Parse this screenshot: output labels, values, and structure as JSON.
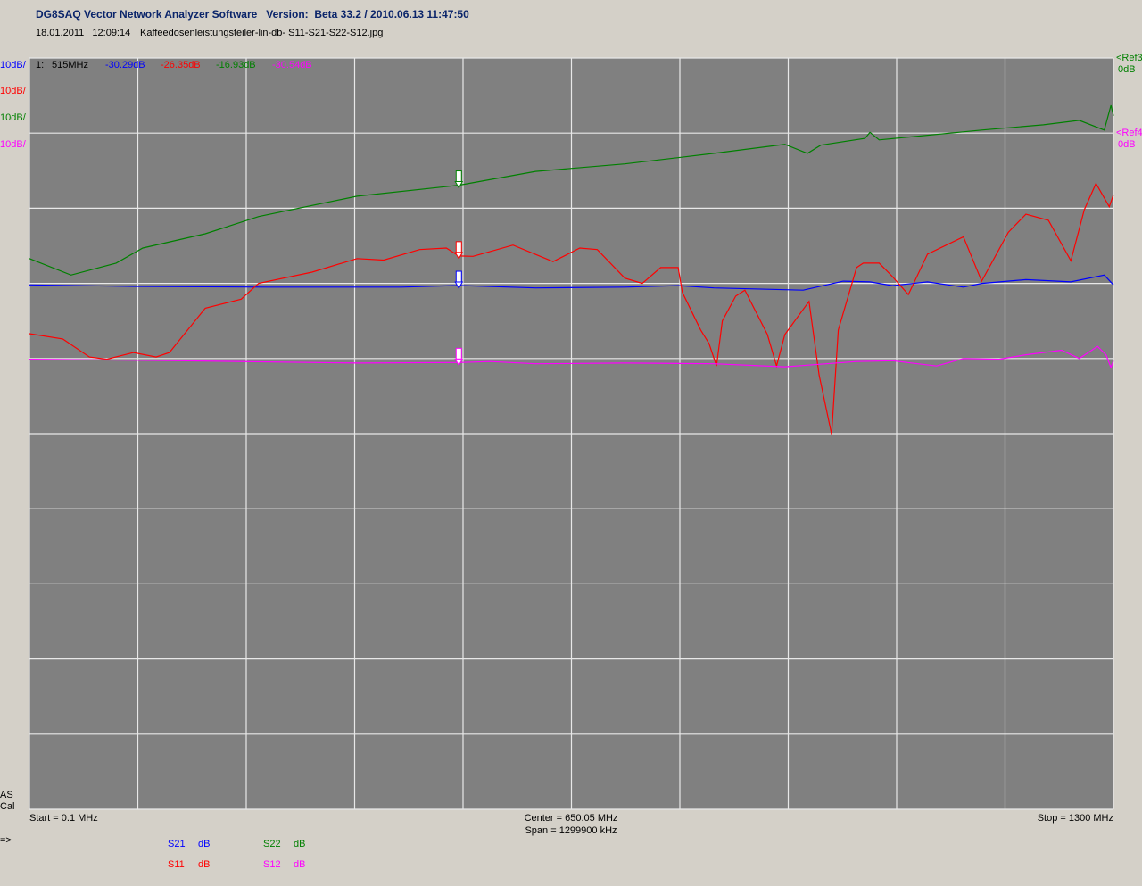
{
  "header": {
    "title": "DG8SAQ Vector Network Analyzer Software   Version:  Beta 33.2 / 2010.06.13 11:47:50",
    "timestamp": "18.01.2011   12:09:14",
    "filename": "Kaffeedosenleistungsteiler-lin-db- S11-S21-S22-S12.jpg"
  },
  "chart_data": {
    "type": "line",
    "xlim": [
      0.1,
      1300
    ],
    "xticks": [
      0.1,
      130.09,
      260.08,
      390.07,
      520.06,
      650.05,
      780.04,
      910.03,
      1040.02,
      1170.01,
      1300
    ],
    "ylim": [
      -100,
      0
    ],
    "yticks": [
      0,
      -10,
      -20,
      -30,
      -40,
      -50,
      -60,
      -70,
      -80,
      -90,
      -100
    ],
    "y2lim": [
      -90,
      10
    ],
    "grid": true,
    "marker": {
      "label": "1:",
      "x": {
        "value": 515,
        "label": "515MHz"
      }
    },
    "series": [
      {
        "name": "S21",
        "unit": "dB",
        "scale": "10dB/",
        "marker_readout": "-30.29dB",
        "color": "#0000ff",
        "x": [
          0.1,
          125,
          286,
          446,
          515,
          607,
          714,
          778,
          821,
          928,
          976,
          1008,
          1035,
          1077,
          1120,
          1142,
          1195,
          1249,
          1289,
          1300
        ],
        "values": [
          -30.2,
          -30.4,
          -30.5,
          -30.5,
          -30.29,
          -30.6,
          -30.5,
          -30.3,
          -30.6,
          -30.9,
          -29.7,
          -29.8,
          -30.3,
          -29.8,
          -30.5,
          -30.0,
          -29.5,
          -29.8,
          -28.9,
          -30.2
        ]
      },
      {
        "name": "S11",
        "unit": "dB",
        "scale": "10dB/",
        "marker_readout": "-26.35dB",
        "color": "#ff0000",
        "x": [
          0.1,
          40,
          72,
          93,
          125,
          152,
          168,
          211,
          254,
          275,
          339,
          393,
          425,
          468,
          500,
          515,
          532,
          580,
          628,
          660,
          681,
          714,
          735,
          757,
          778,
          783,
          805,
          815,
          824,
          831,
          847,
          858,
          885,
          896,
          906,
          935,
          947,
          962,
          970,
          992,
          1000,
          1019,
          1035,
          1054,
          1077,
          1120,
          1142,
          1174,
          1195,
          1222,
          1249,
          1265,
          1279,
          1295,
          1300
        ],
        "values": [
          -36.7,
          -37.4,
          -39.8,
          -40.1,
          -39.2,
          -39.8,
          -39.2,
          -33.3,
          -32.1,
          -30.0,
          -28.5,
          -26.7,
          -26.9,
          -25.5,
          -25.3,
          -26.35,
          -26.4,
          -24.9,
          -27.1,
          -25.3,
          -25.5,
          -29.3,
          -30.0,
          -27.9,
          -27.9,
          -31.2,
          -36.2,
          -38.0,
          -41.0,
          -35.0,
          -31.7,
          -30.9,
          -36.8,
          -41.0,
          -36.8,
          -32.4,
          -42.2,
          -50.1,
          -36.2,
          -27.9,
          -27.3,
          -27.3,
          -29.1,
          -31.5,
          -26.1,
          -23.8,
          -29.7,
          -23.2,
          -20.8,
          -21.6,
          -27.0,
          -20.2,
          -16.7,
          -19.8,
          -18.2
        ]
      },
      {
        "name": "S22",
        "unit": "dB",
        "scale": "10dB/",
        "marker_readout": "-16.93dB",
        "color": "#008000",
        "x": [
          0.1,
          50,
          104,
          136,
          211,
          275,
          393,
          515,
          607,
          714,
          821,
          906,
          933,
          949,
          1002,
          1008,
          1019,
          1142,
          1216,
          1259,
          1289,
          1297,
          1300
        ],
        "values": [
          -26.7,
          -28.9,
          -27.3,
          -25.3,
          -23.4,
          -21.1,
          -18.4,
          -16.93,
          -15.1,
          -14.1,
          -12.7,
          -11.5,
          -12.7,
          -11.6,
          -10.7,
          -9.9,
          -10.9,
          -9.6,
          -8.9,
          -8.3,
          -9.6,
          -6.3,
          -7.7
        ]
      },
      {
        "name": "S12",
        "unit": "dB",
        "scale": "10dB/",
        "marker_readout": "-30.54dB",
        "color": "#ff00ff",
        "axis": "y2",
        "x": [
          0.1,
          179,
          393,
          515,
          553,
          607,
          714,
          821,
          906,
          992,
          1035,
          1088,
          1120,
          1163,
          1195,
          1238,
          1259,
          1281,
          1291,
          1297,
          1300
        ],
        "values": [
          -30.1,
          -30.3,
          -30.6,
          -30.54,
          -30.4,
          -30.7,
          -30.6,
          -30.7,
          -31.1,
          -30.4,
          -30.3,
          -31.0,
          -30.0,
          -30.1,
          -29.5,
          -28.9,
          -30.0,
          -28.4,
          -29.5,
          -31.2,
          -30.3
        ]
      }
    ]
  },
  "references": [
    {
      "label": "<Ref3",
      "level": "0dB"
    },
    {
      "label": "<Ref4",
      "level": "0dB"
    }
  ],
  "status": {
    "line1": "AS",
    "line2": "Cal",
    "prompt": "=>"
  },
  "footer": {
    "start": "Start = 0.1 MHz",
    "center": "Center = 650.05 MHz",
    "span": "Span = 1299900 kHz",
    "stop": "Stop = 1300 MHz"
  }
}
